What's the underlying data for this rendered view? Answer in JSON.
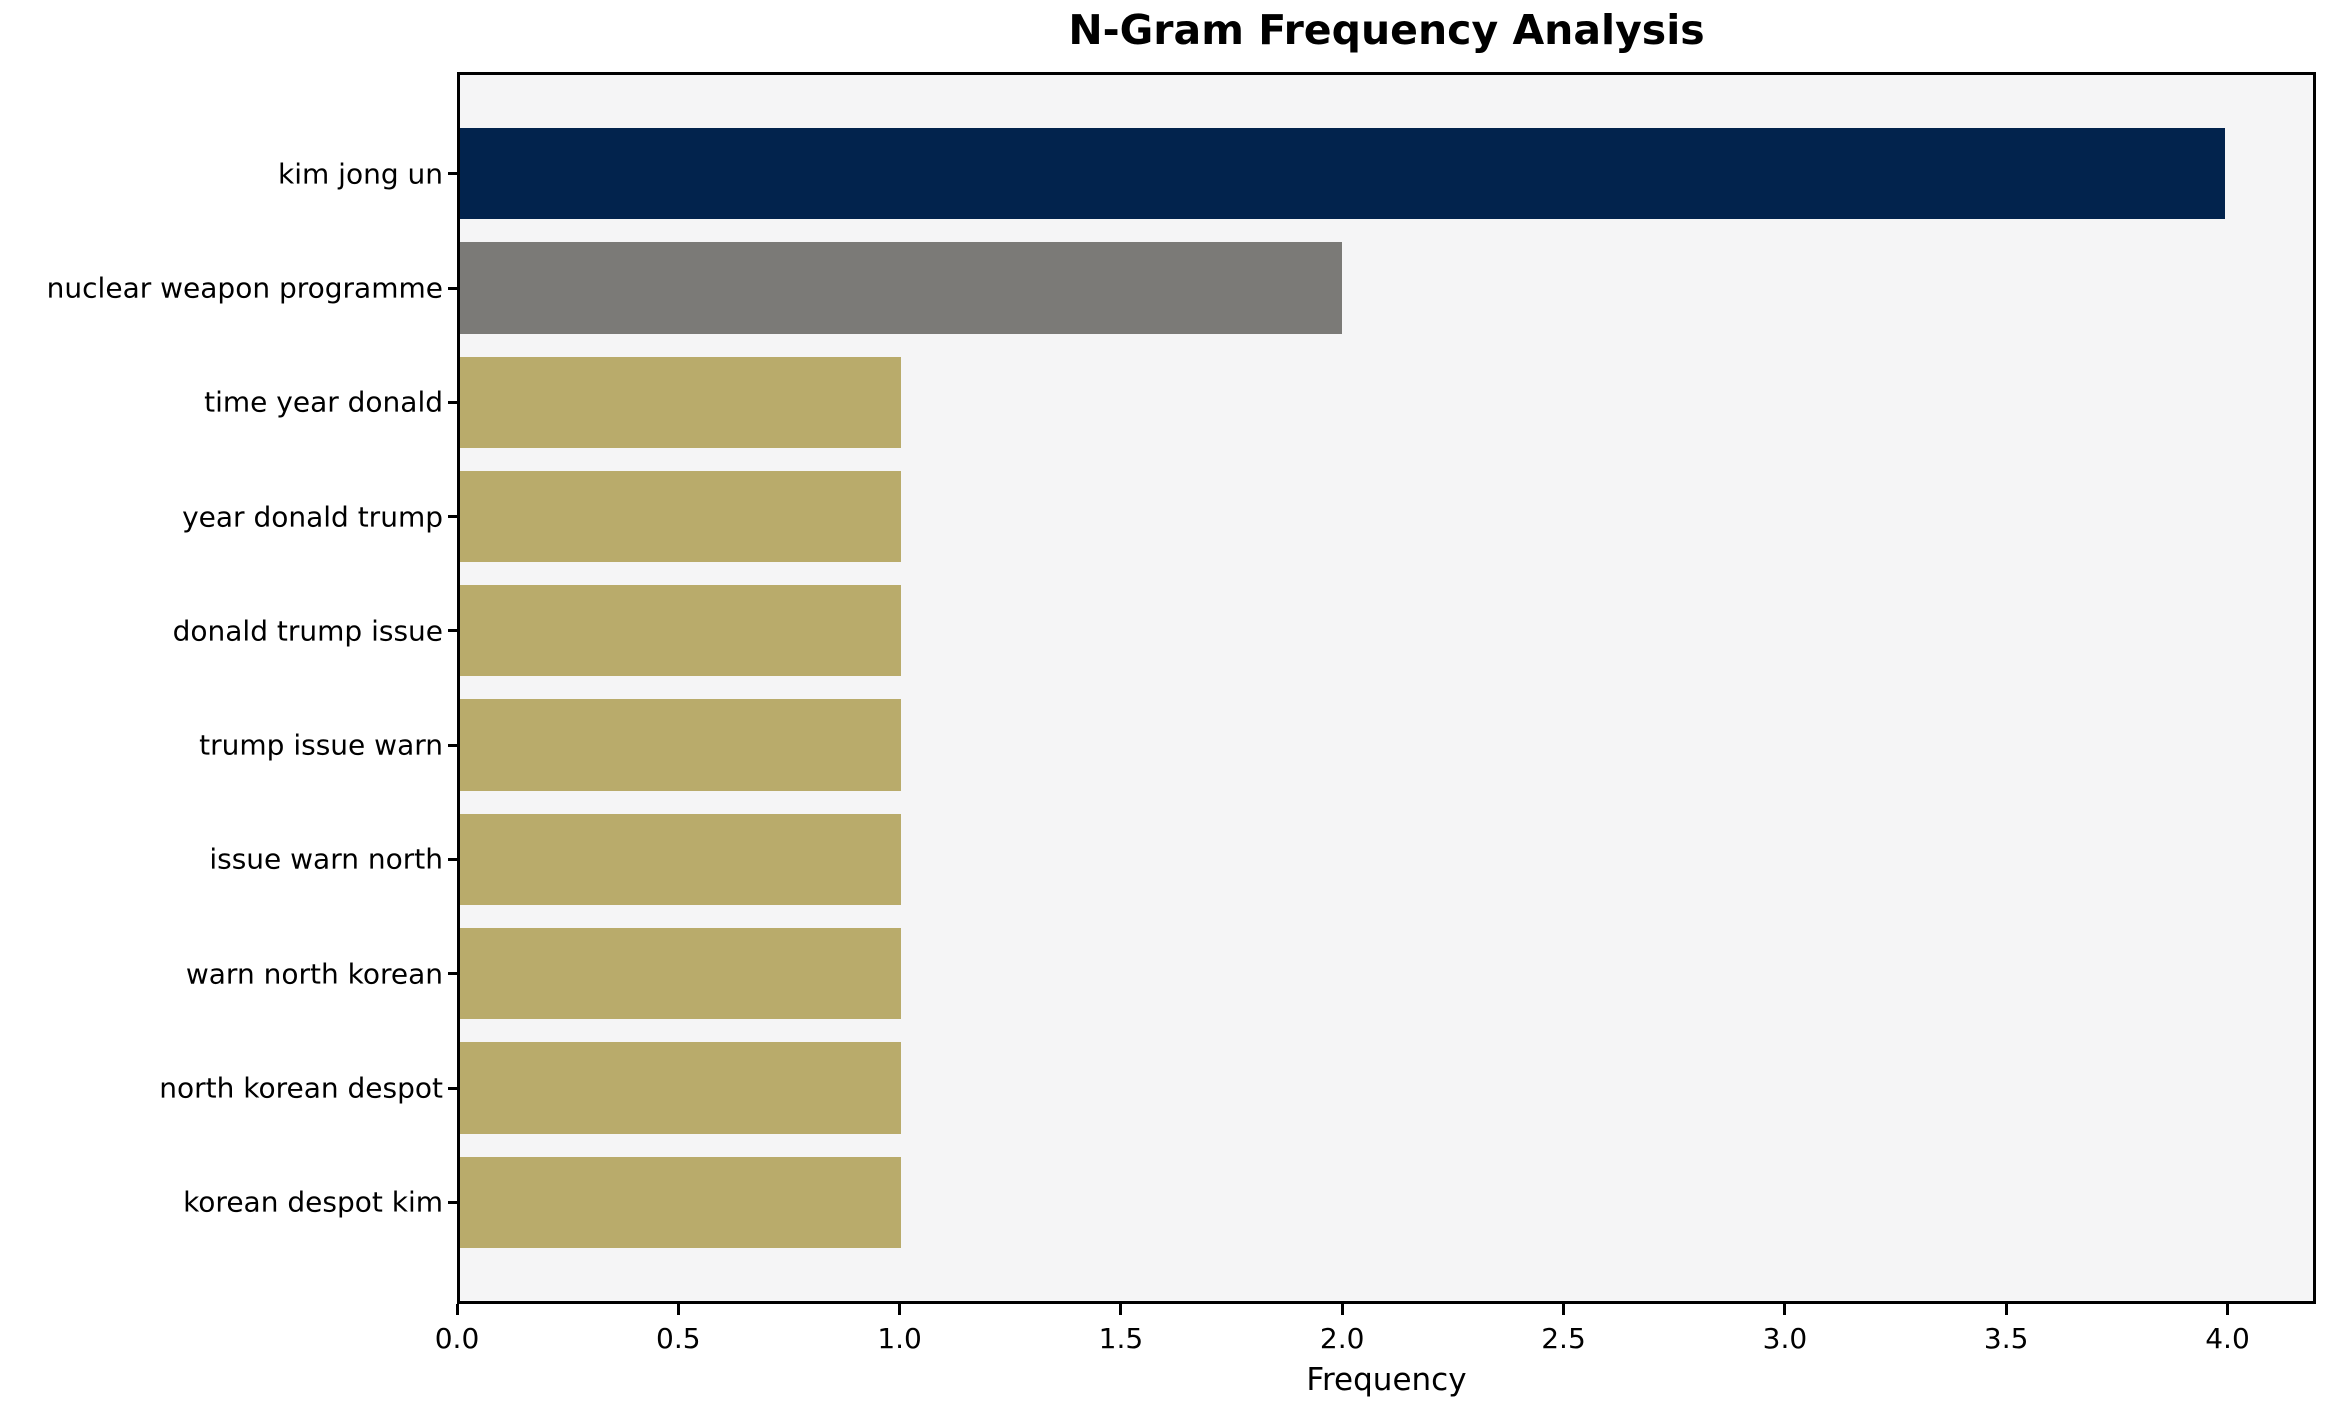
{
  "chart_data": {
    "type": "bar",
    "orientation": "horizontal",
    "title": "N-Gram Frequency Analysis",
    "xlabel": "Frequency",
    "ylabel": "",
    "categories": [
      "kim jong un",
      "nuclear weapon programme",
      "time year donald",
      "year donald trump",
      "donald trump issue",
      "trump issue warn",
      "issue warn north",
      "warn north korean",
      "north korean despot",
      "korean despot kim"
    ],
    "values": [
      4,
      2,
      1,
      1,
      1,
      1,
      1,
      1,
      1,
      1
    ],
    "bar_colors": [
      "#02234d",
      "#7b7a77",
      "#b9ab6b",
      "#b9ab6b",
      "#b9ab6b",
      "#b9ab6b",
      "#b9ab6b",
      "#b9ab6b",
      "#b9ab6b",
      "#b9ab6b"
    ],
    "xlim": [
      0,
      4.2
    ],
    "xticks": [
      {
        "value": 0.0,
        "label": "0.0"
      },
      {
        "value": 0.5,
        "label": "0.5"
      },
      {
        "value": 1.0,
        "label": "1.0"
      },
      {
        "value": 1.5,
        "label": "1.5"
      },
      {
        "value": 2.0,
        "label": "2.0"
      },
      {
        "value": 2.5,
        "label": "2.5"
      },
      {
        "value": 3.0,
        "label": "3.0"
      },
      {
        "value": 3.5,
        "label": "3.5"
      },
      {
        "value": 4.0,
        "label": "4.0"
      }
    ],
    "grid": false,
    "legend": null,
    "colors": {
      "figure_bg": "#ffffff",
      "plot_bg": "#f5f5f6",
      "spine": "#000000",
      "text": "#000000"
    }
  }
}
